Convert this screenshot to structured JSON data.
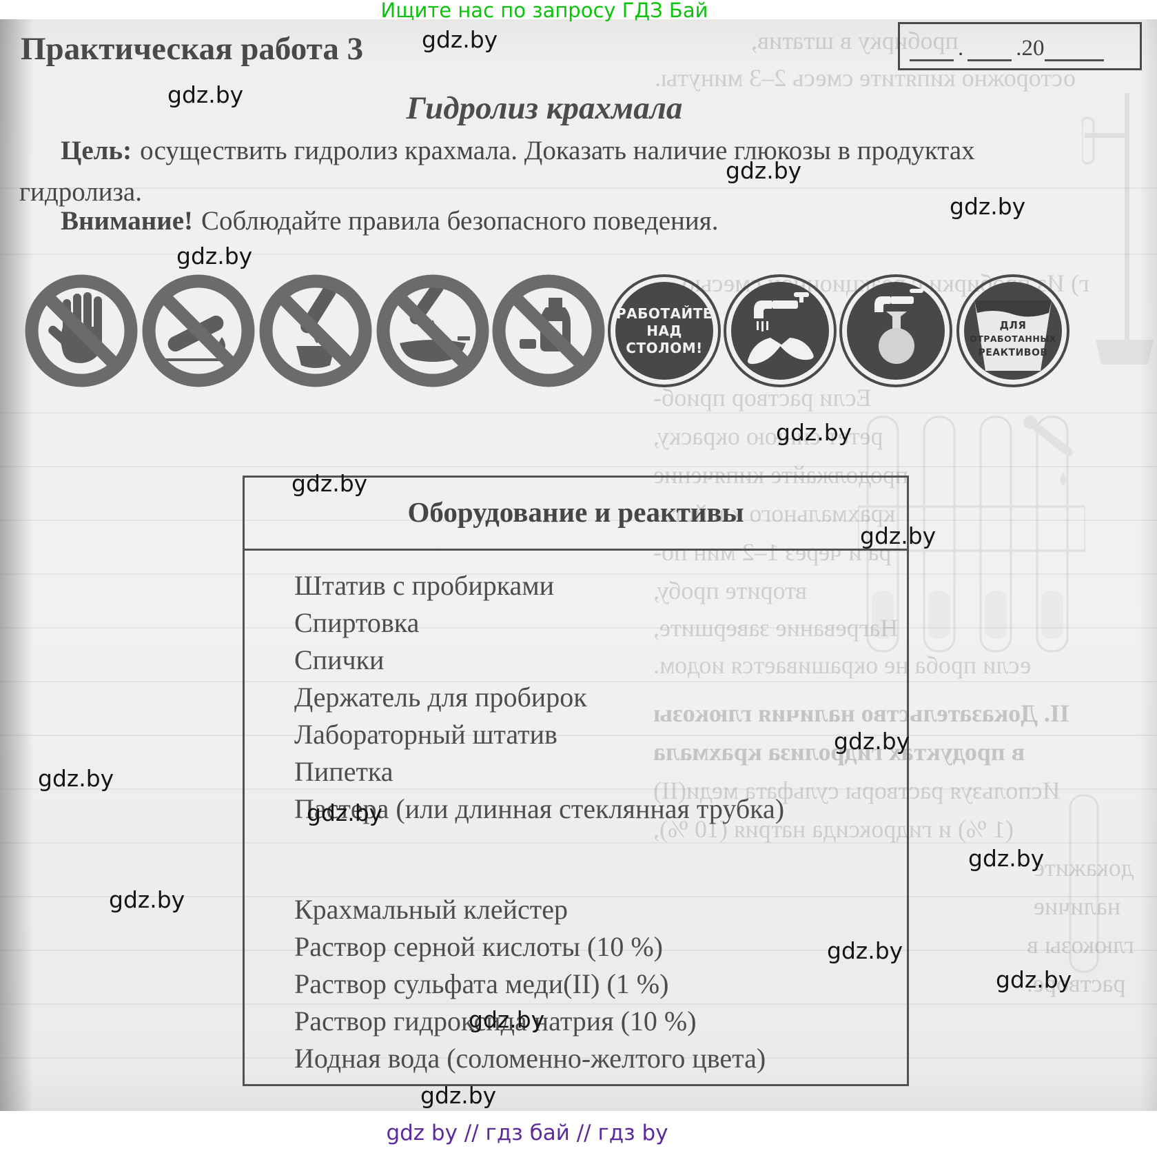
{
  "page": {
    "promo": "Ищите нас по запросу ГДЗ Бай",
    "watermark": "gdz.by",
    "footer": "gdz by  //  гдз бай  //  гдз by"
  },
  "header": {
    "title": "Практическая работа 3",
    "subtitle": "Гидролиз крахмала"
  },
  "date_box": {
    "dot": ".",
    "year": "20"
  },
  "intro": {
    "goal_label": "Цель:",
    "goal_text": "осуществить гидролиз крахмала. Доказать наличие глюкозы в продуктах",
    "goal_text2": "гидролиза.",
    "warning_label": "Внимание!",
    "warning_text": "Соблюдайте правила безопасного поведения."
  },
  "icons": {
    "work_table": [
      "РАБОТАЙТЕ",
      "НАД",
      "СТОЛОМ!"
    ],
    "waste": [
      "ДЛЯ",
      "ОТРАБОТАННЫХ",
      "РЕАКТИВОВ"
    ]
  },
  "equipment_box": {
    "title": "Оборудование и реактивы",
    "equipment": [
      "Штатив с пробирками",
      "Спиртовка",
      "Спички",
      "Держатель для пробирок",
      "Лабораторный штатив",
      "Пипетка",
      "Пастера (или длинная стеклянная трубка)"
    ],
    "reagents": [
      "Крахмальный клейстер",
      "Раствор серной кислоты (10 %)",
      "Раствор сульфата меди(II) (1 %)",
      "Раствор гидроксида натрия (10 %)",
      "Иодная вода (соломенно-желтого цвета)"
    ]
  },
  "showthrough": [
    "пробирку в штатив,",
    "осторожно кипятите смесь 2–3 минуты.",
    "г) Из пробирки с реакционной смесью",
    "Если раствор приоб-",
    "ретет синюю окраску,",
    "продолжайте кипячение",
    "крахмального клейсте-",
    "ра и через 1–2 мин по-",
    "вторите пробу,",
    "Нагревание завершите,",
    "если проба не окрашивается иодом.",
    "II. Доказательство наличия глюкозы",
    "в продуктах гидролиза крахмала",
    "Используя растворы сульфата меди(II)",
    "(1 %) и гидроксида натрия (10 %),",
    "докажите",
    "наличие",
    "глюкозы в",
    "растворе."
  ]
}
